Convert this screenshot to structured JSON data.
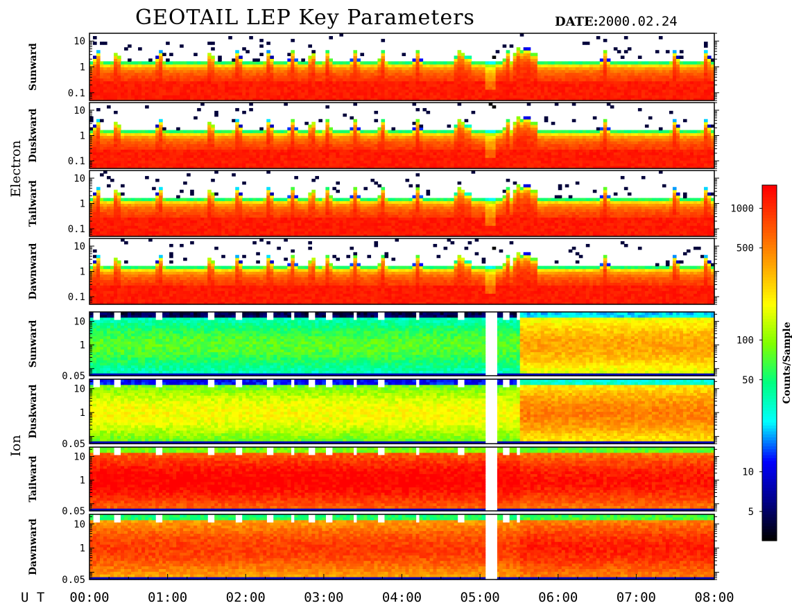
{
  "title": "GEOTAIL LEP Key Parameters",
  "date_label": "DATE:",
  "date_value": "2000.02.24",
  "x_axis_label": "U T",
  "time_ticks": [
    "00:00",
    "01:00",
    "02:00",
    "03:00",
    "04:00",
    "05:00",
    "06:00",
    "07:00",
    "08:00"
  ],
  "groups": [
    {
      "name": "Electron",
      "panels": [
        "Sunward",
        "Duskward",
        "Tailward",
        "Dawnward"
      ]
    },
    {
      "name": "Ion",
      "panels": [
        "Sunward",
        "Duskward",
        "Tailward",
        "Dawnward"
      ]
    }
  ],
  "electron_y_ticks": [
    "10",
    "1",
    "0.1"
  ],
  "ion_y_ticks": [
    "10",
    "1",
    "0.05"
  ],
  "colorbar": {
    "label": "Counts/Sample",
    "ticks": [
      "1000",
      "500",
      "100",
      "50",
      "10",
      "5"
    ],
    "colors": [
      "#000000",
      "#00008b",
      "#0000ff",
      "#00ffff",
      "#00ff80",
      "#80ff00",
      "#ffff00",
      "#ffa500",
      "#ff5000",
      "#ff0000"
    ]
  },
  "chart_data": {
    "type": "heatmap",
    "x_range_hours": [
      0,
      8
    ],
    "electron_energy_range": [
      0.05,
      20
    ],
    "ion_energy_range": [
      0.05,
      25
    ],
    "electron_profile": {
      "peak_counts": 1200,
      "cutoff_keV": 1.0
    },
    "ion_profile": {
      "Sunward": {
        "level_before_0550": 60,
        "level_after_0550": 300
      },
      "Duskward": {
        "level_before_0550": 150,
        "level_after_0550": 400
      },
      "Tailward": {
        "level_before_0550": 1200,
        "level_after_0550": 1000
      },
      "Dawnward": {
        "level_before_0550": 700,
        "level_after_0550": 900
      }
    },
    "data_gap_hours": [
      5.08,
      5.22
    ],
    "colorbar_range": [
      3,
      1500
    ]
  }
}
